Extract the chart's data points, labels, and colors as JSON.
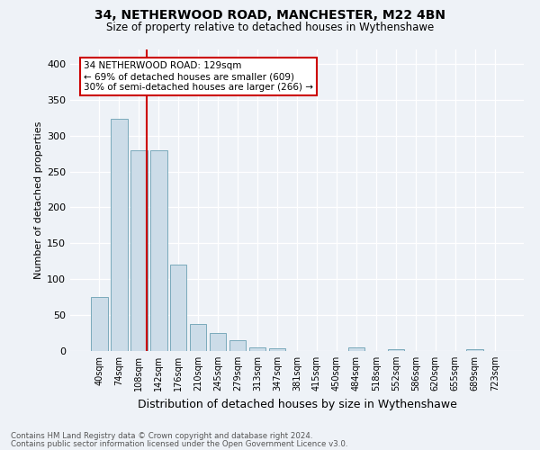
{
  "title1": "34, NETHERWOOD ROAD, MANCHESTER, M22 4BN",
  "title2": "Size of property relative to detached houses in Wythenshawe",
  "xlabel": "Distribution of detached houses by size in Wythenshawe",
  "ylabel": "Number of detached properties",
  "footnote1": "Contains HM Land Registry data © Crown copyright and database right 2024.",
  "footnote2": "Contains public sector information licensed under the Open Government Licence v3.0.",
  "annotation_line1": "34 NETHERWOOD ROAD: 129sqm",
  "annotation_line2": "← 69% of detached houses are smaller (609)",
  "annotation_line3": "30% of semi-detached houses are larger (266) →",
  "bar_labels": [
    "40sqm",
    "74sqm",
    "108sqm",
    "142sqm",
    "176sqm",
    "210sqm",
    "245sqm",
    "279sqm",
    "313sqm",
    "347sqm",
    "381sqm",
    "415sqm",
    "450sqm",
    "484sqm",
    "518sqm",
    "552sqm",
    "586sqm",
    "620sqm",
    "655sqm",
    "689sqm",
    "723sqm"
  ],
  "bar_values": [
    75,
    323,
    280,
    280,
    120,
    38,
    25,
    15,
    5,
    4,
    0,
    0,
    0,
    5,
    0,
    3,
    0,
    0,
    0,
    3,
    0
  ],
  "bar_color": "#ccdce8",
  "bar_edge_color": "#7aaabb",
  "vline_color": "#cc0000",
  "vline_x": 2.42,
  "ylim": [
    0,
    420
  ],
  "yticks": [
    0,
    50,
    100,
    150,
    200,
    250,
    300,
    350,
    400
  ],
  "bg_color": "#eef2f7",
  "grid_color": "#ffffff",
  "annotation_box_facecolor": "#ffffff",
  "annotation_box_edgecolor": "#cc0000"
}
